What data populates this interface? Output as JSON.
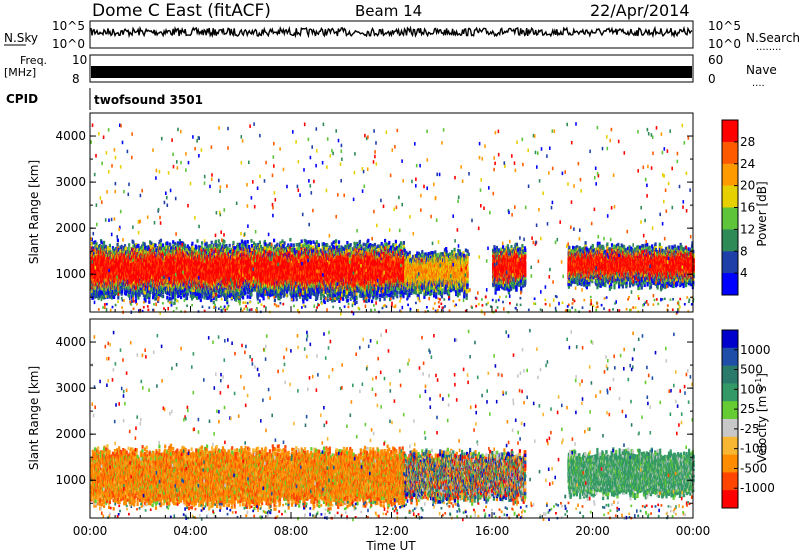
{
  "header": {
    "station": "Dome C East (fitACF)",
    "beam": "Beam 14",
    "date": "22/Apr/2014"
  },
  "labels": {
    "nsky": "N.Sky",
    "nsearch": "N.Search",
    "nsearch_dots": "........",
    "freq": "Freq.",
    "mhz": "[MHz]",
    "nave": "Nave",
    "nave_dots": "....",
    "cpid": "CPID",
    "cpid_value": "twofsound 3501"
  },
  "noise_axis": {
    "top_left": "10^5",
    "bottom_left": "10^0",
    "top_right": "10^5",
    "bottom_right": "10^0"
  },
  "freq_axis": {
    "ticks": [
      "10",
      "8"
    ],
    "nave_ticks": [
      "60",
      "0"
    ]
  },
  "x_axis": {
    "label": "Time UT",
    "ticks": [
      "00:00",
      "04:00",
      "08:00",
      "12:00",
      "16:00",
      "20:00",
      "00:00"
    ],
    "range_hours": [
      0,
      24
    ]
  },
  "colors": {
    "power_scale": [
      "#0000ff",
      "#1f3fa8",
      "#2e8b57",
      "#5ec43a",
      "#e6d000",
      "#ff9a00",
      "#ff5a00",
      "#ff0000"
    ],
    "velocity_scale": [
      "#ff0000",
      "#ff4500",
      "#ff8c00",
      "#f7b733",
      "#c8c8c8",
      "#66cc33",
      "#339966",
      "#2a7a6b",
      "#1f4ea8",
      "#0000cc"
    ]
  },
  "chart_data": [
    {
      "type": "heatmap",
      "name": "power",
      "ylabel": "Slant Range [km]",
      "yticks": [
        "4000",
        "3000",
        "2000",
        "1000"
      ],
      "y_range_km": [
        180,
        4500
      ],
      "colorbar": {
        "label": "Power [dB]",
        "ticks": [
          "28",
          "24",
          "20",
          "16",
          "12",
          "8",
          "4"
        ],
        "range": [
          0,
          32
        ]
      },
      "bands": [
        {
          "t0": 0.0,
          "t1": 12.5,
          "r0": 500,
          "r1": 1800,
          "level": "high"
        },
        {
          "t0": 12.5,
          "t1": 15.0,
          "r0": 600,
          "r1": 1600,
          "level": "medium"
        },
        {
          "t0": 16.0,
          "t1": 17.3,
          "r0": 700,
          "r1": 1700,
          "level": "high"
        },
        {
          "t0": 19.0,
          "t1": 24.0,
          "r0": 800,
          "r1": 1700,
          "level": "high"
        }
      ]
    },
    {
      "type": "heatmap",
      "name": "velocity",
      "ylabel": "Slant Range [km]",
      "yticks": [
        "4000",
        "3000",
        "2000",
        "1000"
      ],
      "y_range_km": [
        180,
        4500
      ],
      "colorbar": {
        "label": "Velocity [m s^-1]",
        "ticks": [
          "1000",
          "500",
          "100",
          "25",
          "-25",
          "-100",
          "-500",
          "-1000"
        ]
      },
      "bands": [
        {
          "t0": 0.0,
          "t1": 12.5,
          "r0": 500,
          "r1": 1800,
          "level": "negative"
        },
        {
          "t0": 12.5,
          "t1": 17.3,
          "r0": 600,
          "r1": 1700,
          "level": "mixed"
        },
        {
          "t0": 19.0,
          "t1": 24.0,
          "r0": 700,
          "r1": 1700,
          "level": "positive"
        }
      ]
    }
  ]
}
